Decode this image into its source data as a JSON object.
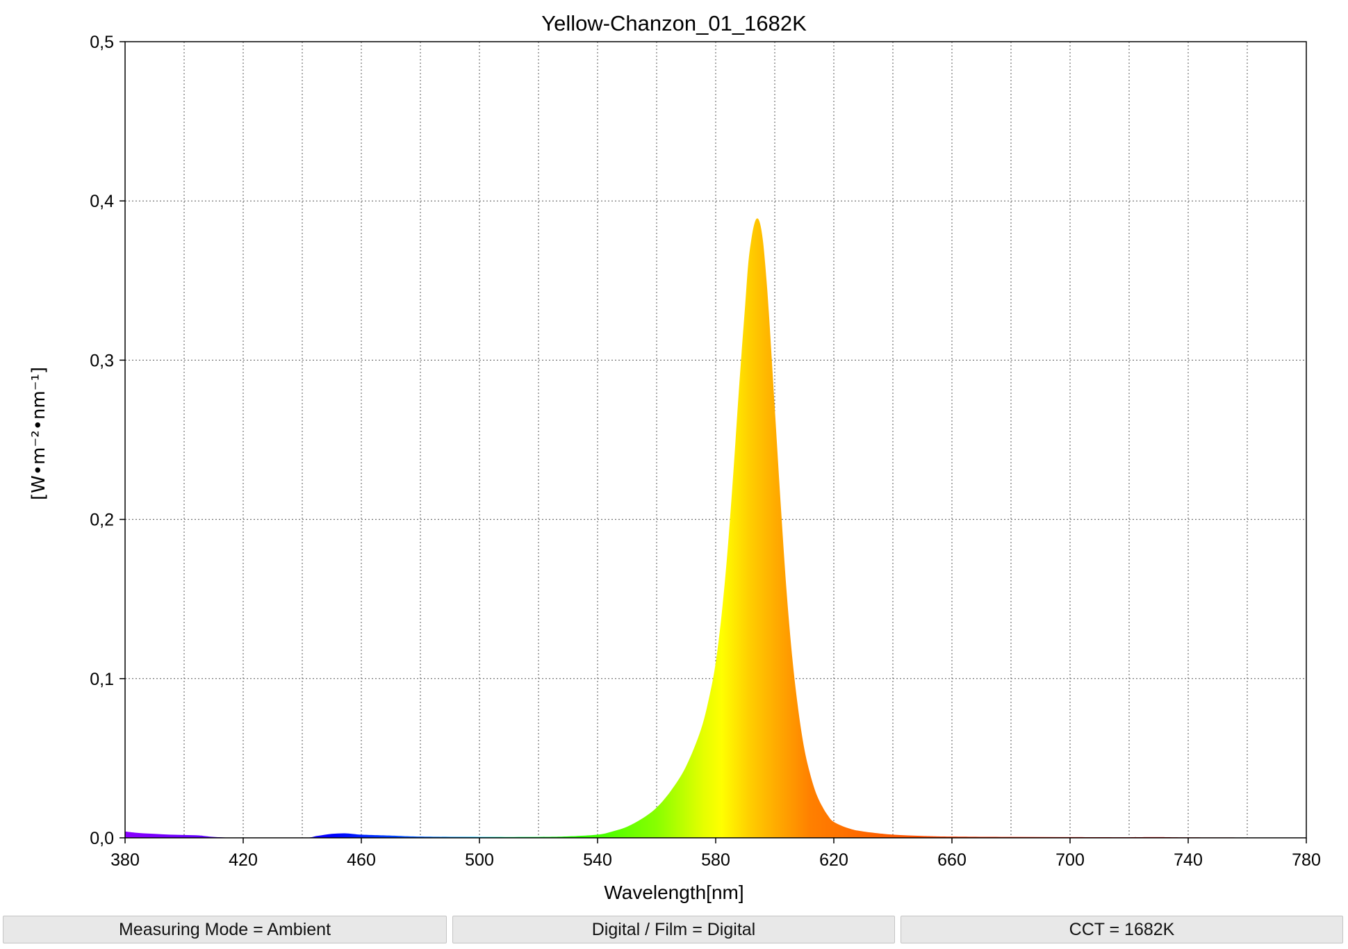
{
  "chart_data": {
    "type": "area",
    "title": "Yellow-Chanzon_01_1682K",
    "xlabel": "Wavelength[nm]",
    "ylabel": "[W•m⁻²•nm⁻¹]",
    "xlim": [
      380,
      780
    ],
    "ylim": [
      0,
      0.5
    ],
    "x_ticks": [
      380,
      420,
      460,
      500,
      540,
      580,
      620,
      660,
      700,
      740,
      780
    ],
    "x_tick_labels": [
      "380",
      "420",
      "460",
      "500",
      "540",
      "580",
      "620",
      "660",
      "700",
      "740",
      "780"
    ],
    "y_ticks": [
      0,
      0.1,
      0.2,
      0.3,
      0.4,
      0.5
    ],
    "y_tick_labels": [
      "0,0",
      "0,1",
      "0,2",
      "0,3",
      "0,4",
      "0,5"
    ],
    "grid": true,
    "fill": "visible-spectrum gradient (violet to red by wavelength)",
    "series": [
      {
        "x": [
          380,
          385,
          390,
          395,
          400,
          405,
          410,
          420,
          440,
          445,
          450,
          455,
          460,
          470,
          480,
          500,
          520,
          530,
          540,
          545,
          550,
          555,
          560,
          565,
          570,
          575,
          578,
          580,
          582,
          584,
          586,
          588,
          590,
          591,
          592,
          593,
          594,
          595,
          596,
          597,
          598,
          600,
          602,
          604,
          606,
          608,
          610,
          612,
          614,
          616,
          618,
          620,
          625,
          630,
          640,
          650,
          660,
          680,
          700,
          720,
          730,
          740,
          760,
          780
        ],
        "values": [
          0.004,
          0.003,
          0.0025,
          0.002,
          0.0018,
          0.0015,
          0.0006,
          0.0,
          0.0,
          0.0012,
          0.0025,
          0.0028,
          0.002,
          0.0014,
          0.0008,
          0.0006,
          0.0006,
          0.0009,
          0.002,
          0.004,
          0.007,
          0.012,
          0.019,
          0.03,
          0.045,
          0.068,
          0.09,
          0.11,
          0.14,
          0.18,
          0.23,
          0.285,
          0.335,
          0.36,
          0.375,
          0.385,
          0.389,
          0.386,
          0.375,
          0.355,
          0.33,
          0.27,
          0.21,
          0.155,
          0.112,
          0.08,
          0.056,
          0.04,
          0.028,
          0.02,
          0.014,
          0.01,
          0.006,
          0.004,
          0.002,
          0.0012,
          0.0008,
          0.0006,
          0.0005,
          0.0004,
          0.0005,
          0.0003,
          0.0002,
          0.0001
        ]
      }
    ]
  },
  "status_bar": {
    "measuring_mode": "Measuring Mode = Ambient",
    "digital_film": "Digital / Film = Digital",
    "cct": "CCT = 1682K"
  }
}
